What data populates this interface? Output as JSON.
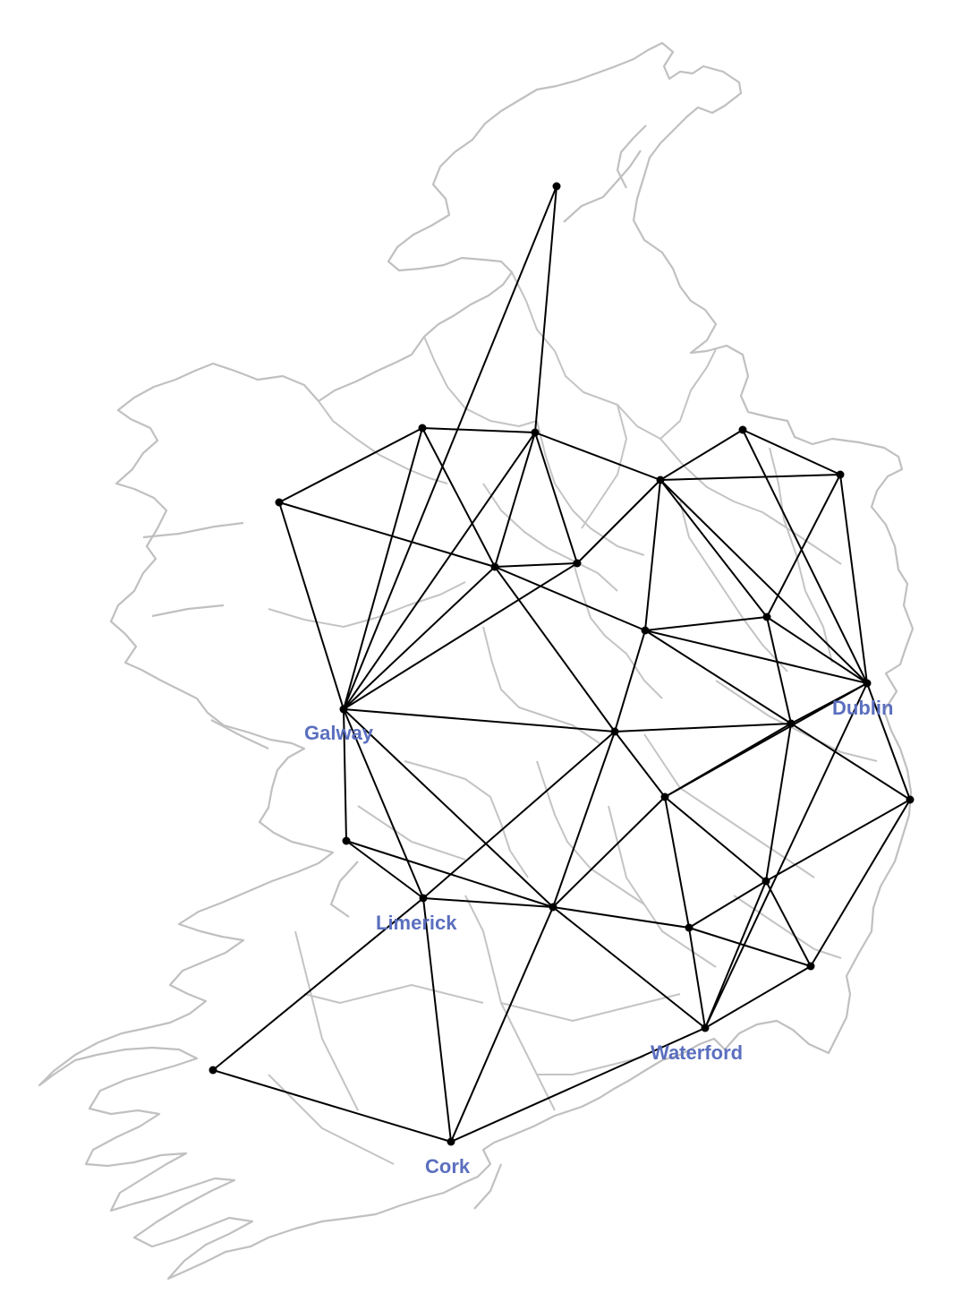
{
  "map": {
    "colors": {
      "coastline": "#c0c0c0",
      "county_borders": "#c4c4c4",
      "network": "#000000",
      "labels": "#5b6fbf"
    },
    "cities": [
      {
        "id": "galway",
        "name": "Galway"
      },
      {
        "id": "limerick",
        "name": "Limerick"
      },
      {
        "id": "cork",
        "name": "Cork"
      },
      {
        "id": "waterford",
        "name": "Waterford"
      },
      {
        "id": "dublin",
        "name": "Dublin"
      }
    ]
  }
}
